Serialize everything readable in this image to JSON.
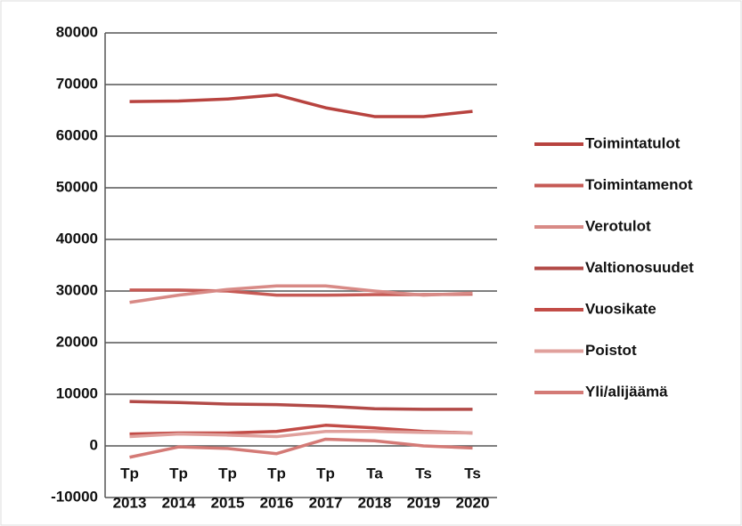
{
  "chart_data": {
    "type": "line",
    "categories": [
      [
        "Tp",
        "2013"
      ],
      [
        "Tp",
        "2014"
      ],
      [
        "Tp",
        "2015"
      ],
      [
        "Tp",
        "2016"
      ],
      [
        "Tp",
        "2017"
      ],
      [
        "Ta",
        "2018"
      ],
      [
        "Ts",
        "2019"
      ],
      [
        "Ts",
        "2020"
      ]
    ],
    "series": [
      {
        "name": "Toimintatulot",
        "color": "#b8433f",
        "values": [
          66700,
          66800,
          67200,
          68000,
          65500,
          63800,
          63800,
          64800
        ]
      },
      {
        "name": "Toimintamenot",
        "color": "#c65a55",
        "values": [
          30200,
          30200,
          30000,
          29200,
          29200,
          29300,
          29300,
          29400
        ]
      },
      {
        "name": "Verotulot",
        "color": "#d88a86",
        "values": [
          27800,
          29200,
          30300,
          31000,
          31000,
          30000,
          29200,
          29600
        ]
      },
      {
        "name": "Valtionosuudet",
        "color": "#b24a47",
        "values": [
          8600,
          8400,
          8100,
          8000,
          7700,
          7200,
          7100,
          7100
        ]
      },
      {
        "name": "Vuosikate",
        "color": "#c24c47",
        "values": [
          2300,
          2500,
          2500,
          2800,
          4000,
          3500,
          2800,
          2500
        ]
      },
      {
        "name": "Poistot",
        "color": "#e0a09c",
        "values": [
          1800,
          2300,
          2100,
          1800,
          2800,
          2800,
          2600,
          2500
        ]
      },
      {
        "name": "Yli/alijäämä",
        "color": "#d47a76",
        "values": [
          -2200,
          -200,
          -500,
          -1500,
          1300,
          1000,
          0,
          -400
        ]
      }
    ],
    "ylim": [
      -10000,
      80000
    ],
    "yticks": [
      -10000,
      0,
      10000,
      20000,
      30000,
      40000,
      50000,
      60000,
      70000,
      80000
    ],
    "grid": true,
    "legend": "right"
  }
}
